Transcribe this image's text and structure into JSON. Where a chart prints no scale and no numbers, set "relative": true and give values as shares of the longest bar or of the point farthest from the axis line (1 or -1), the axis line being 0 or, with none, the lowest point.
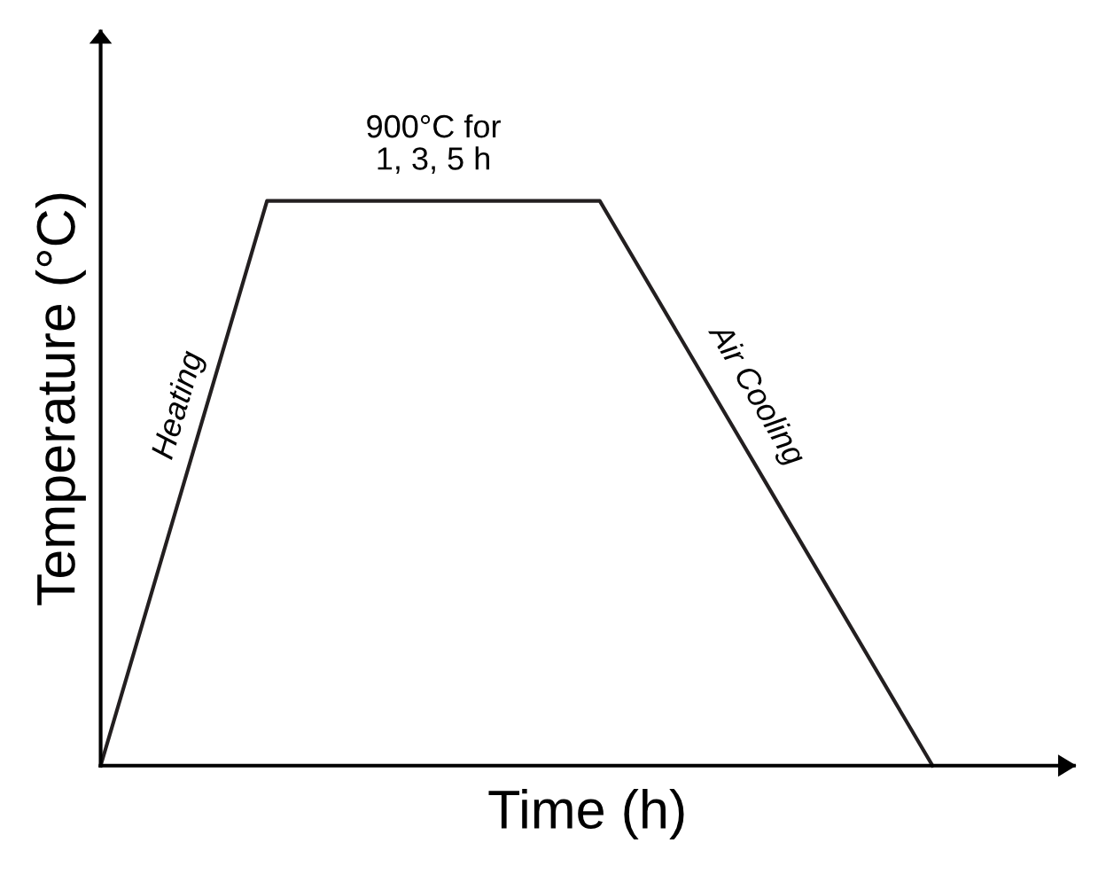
{
  "chart_data": {
    "type": "line",
    "relative": true,
    "xlabel": "Time (h)",
    "ylabel": "Temperature (°C)",
    "categories": [
      null,
      null,
      null,
      null,
      null,
      null
    ],
    "series": [
      {
        "color": "#231f20",
        "values": [
          0,
          1,
          1,
          1,
          0.5,
          0
        ]
      }
    ],
    "annotations": [
      "900°C for\n1, 3, 5 h",
      "Heating",
      "Air Cooling"
    ],
    "marker": "none",
    "line_style": "solid"
  }
}
